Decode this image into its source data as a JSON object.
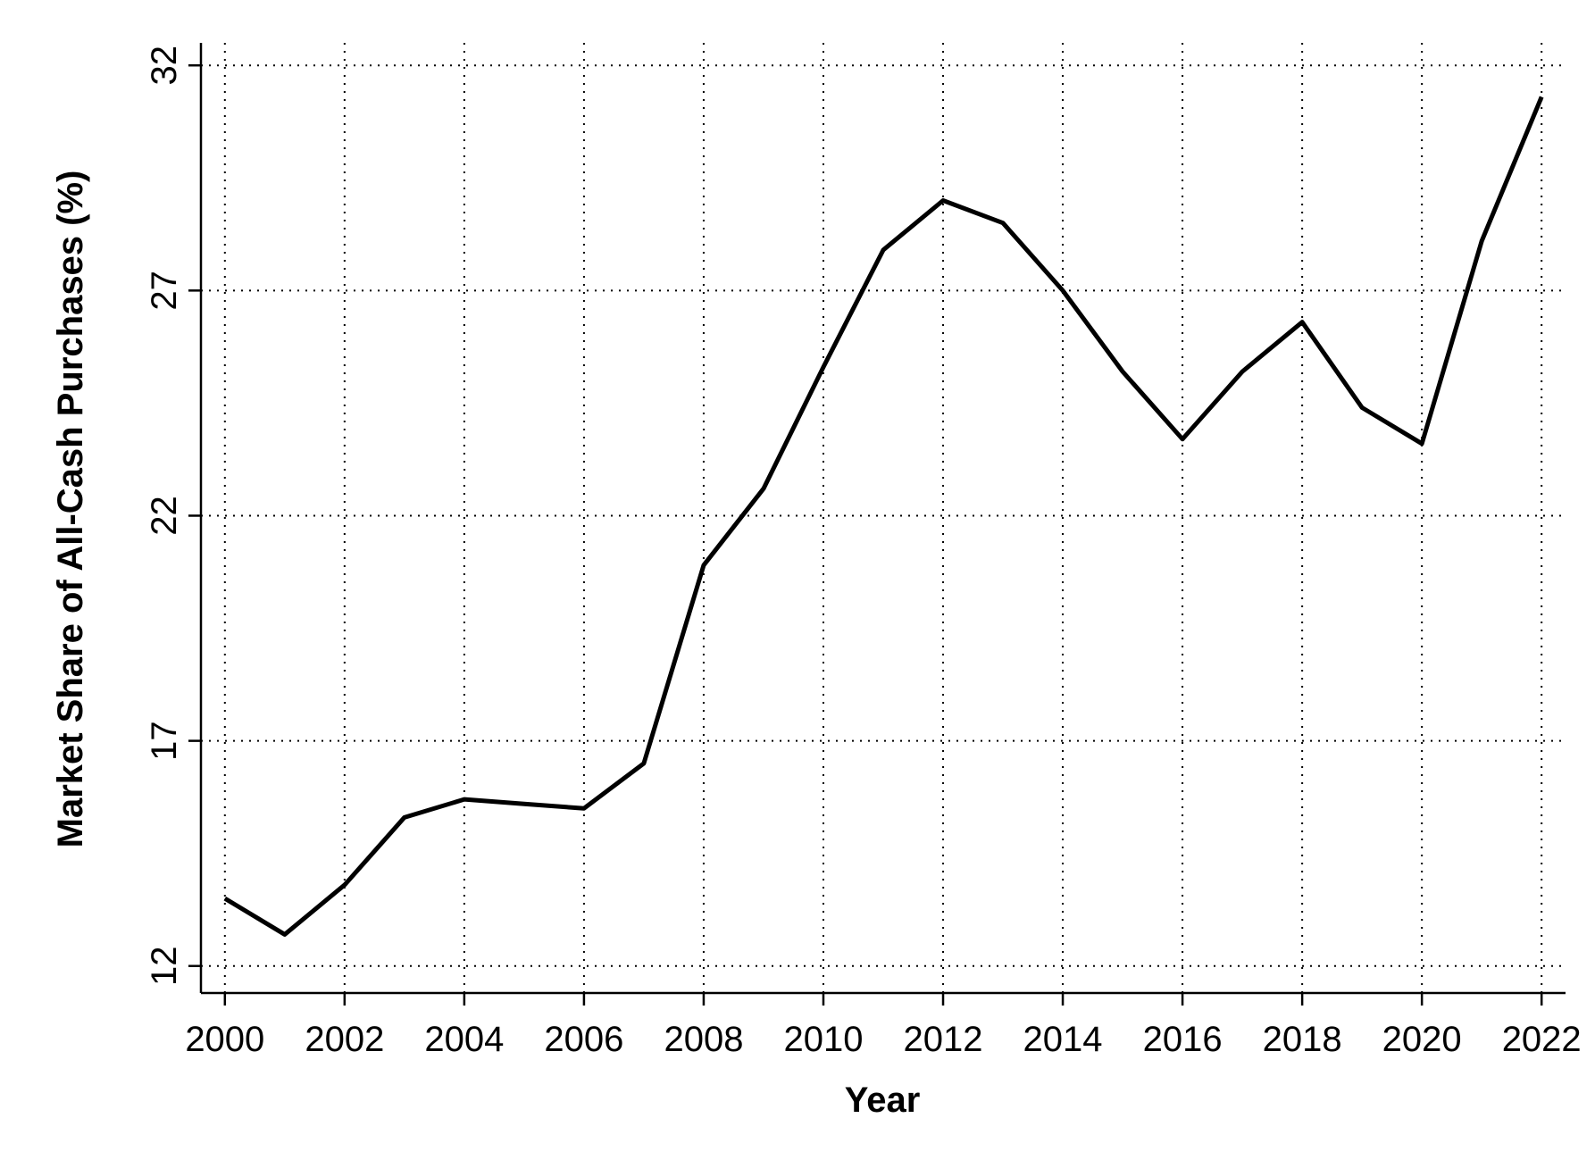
{
  "chart_data": {
    "type": "line",
    "xlabel": "Year",
    "ylabel": "Market Share of All-Cash Purchases (%)",
    "x": [
      2000,
      2001,
      2002,
      2003,
      2004,
      2005,
      2006,
      2007,
      2008,
      2009,
      2010,
      2011,
      2012,
      2013,
      2014,
      2015,
      2016,
      2017,
      2018,
      2019,
      2020,
      2021,
      2022
    ],
    "series": [
      {
        "color": "#000000",
        "values": [
          13.5,
          12.7,
          13.8,
          15.3,
          15.7,
          15.6,
          15.5,
          16.5,
          20.9,
          22.6,
          25.3,
          27.9,
          29.0,
          28.5,
          27.0,
          25.2,
          23.7,
          25.2,
          26.3,
          24.4,
          23.6,
          28.1,
          31.3
        ]
      }
    ],
    "xlim": [
      1999.6,
      2022.4
    ],
    "ylim": [
      11.4,
      32.5
    ],
    "xticks": [
      2000,
      2002,
      2004,
      2006,
      2008,
      2010,
      2012,
      2014,
      2016,
      2018,
      2020,
      2022
    ],
    "yticks": [
      12,
      17,
      22,
      27,
      32
    ],
    "grid": true
  }
}
